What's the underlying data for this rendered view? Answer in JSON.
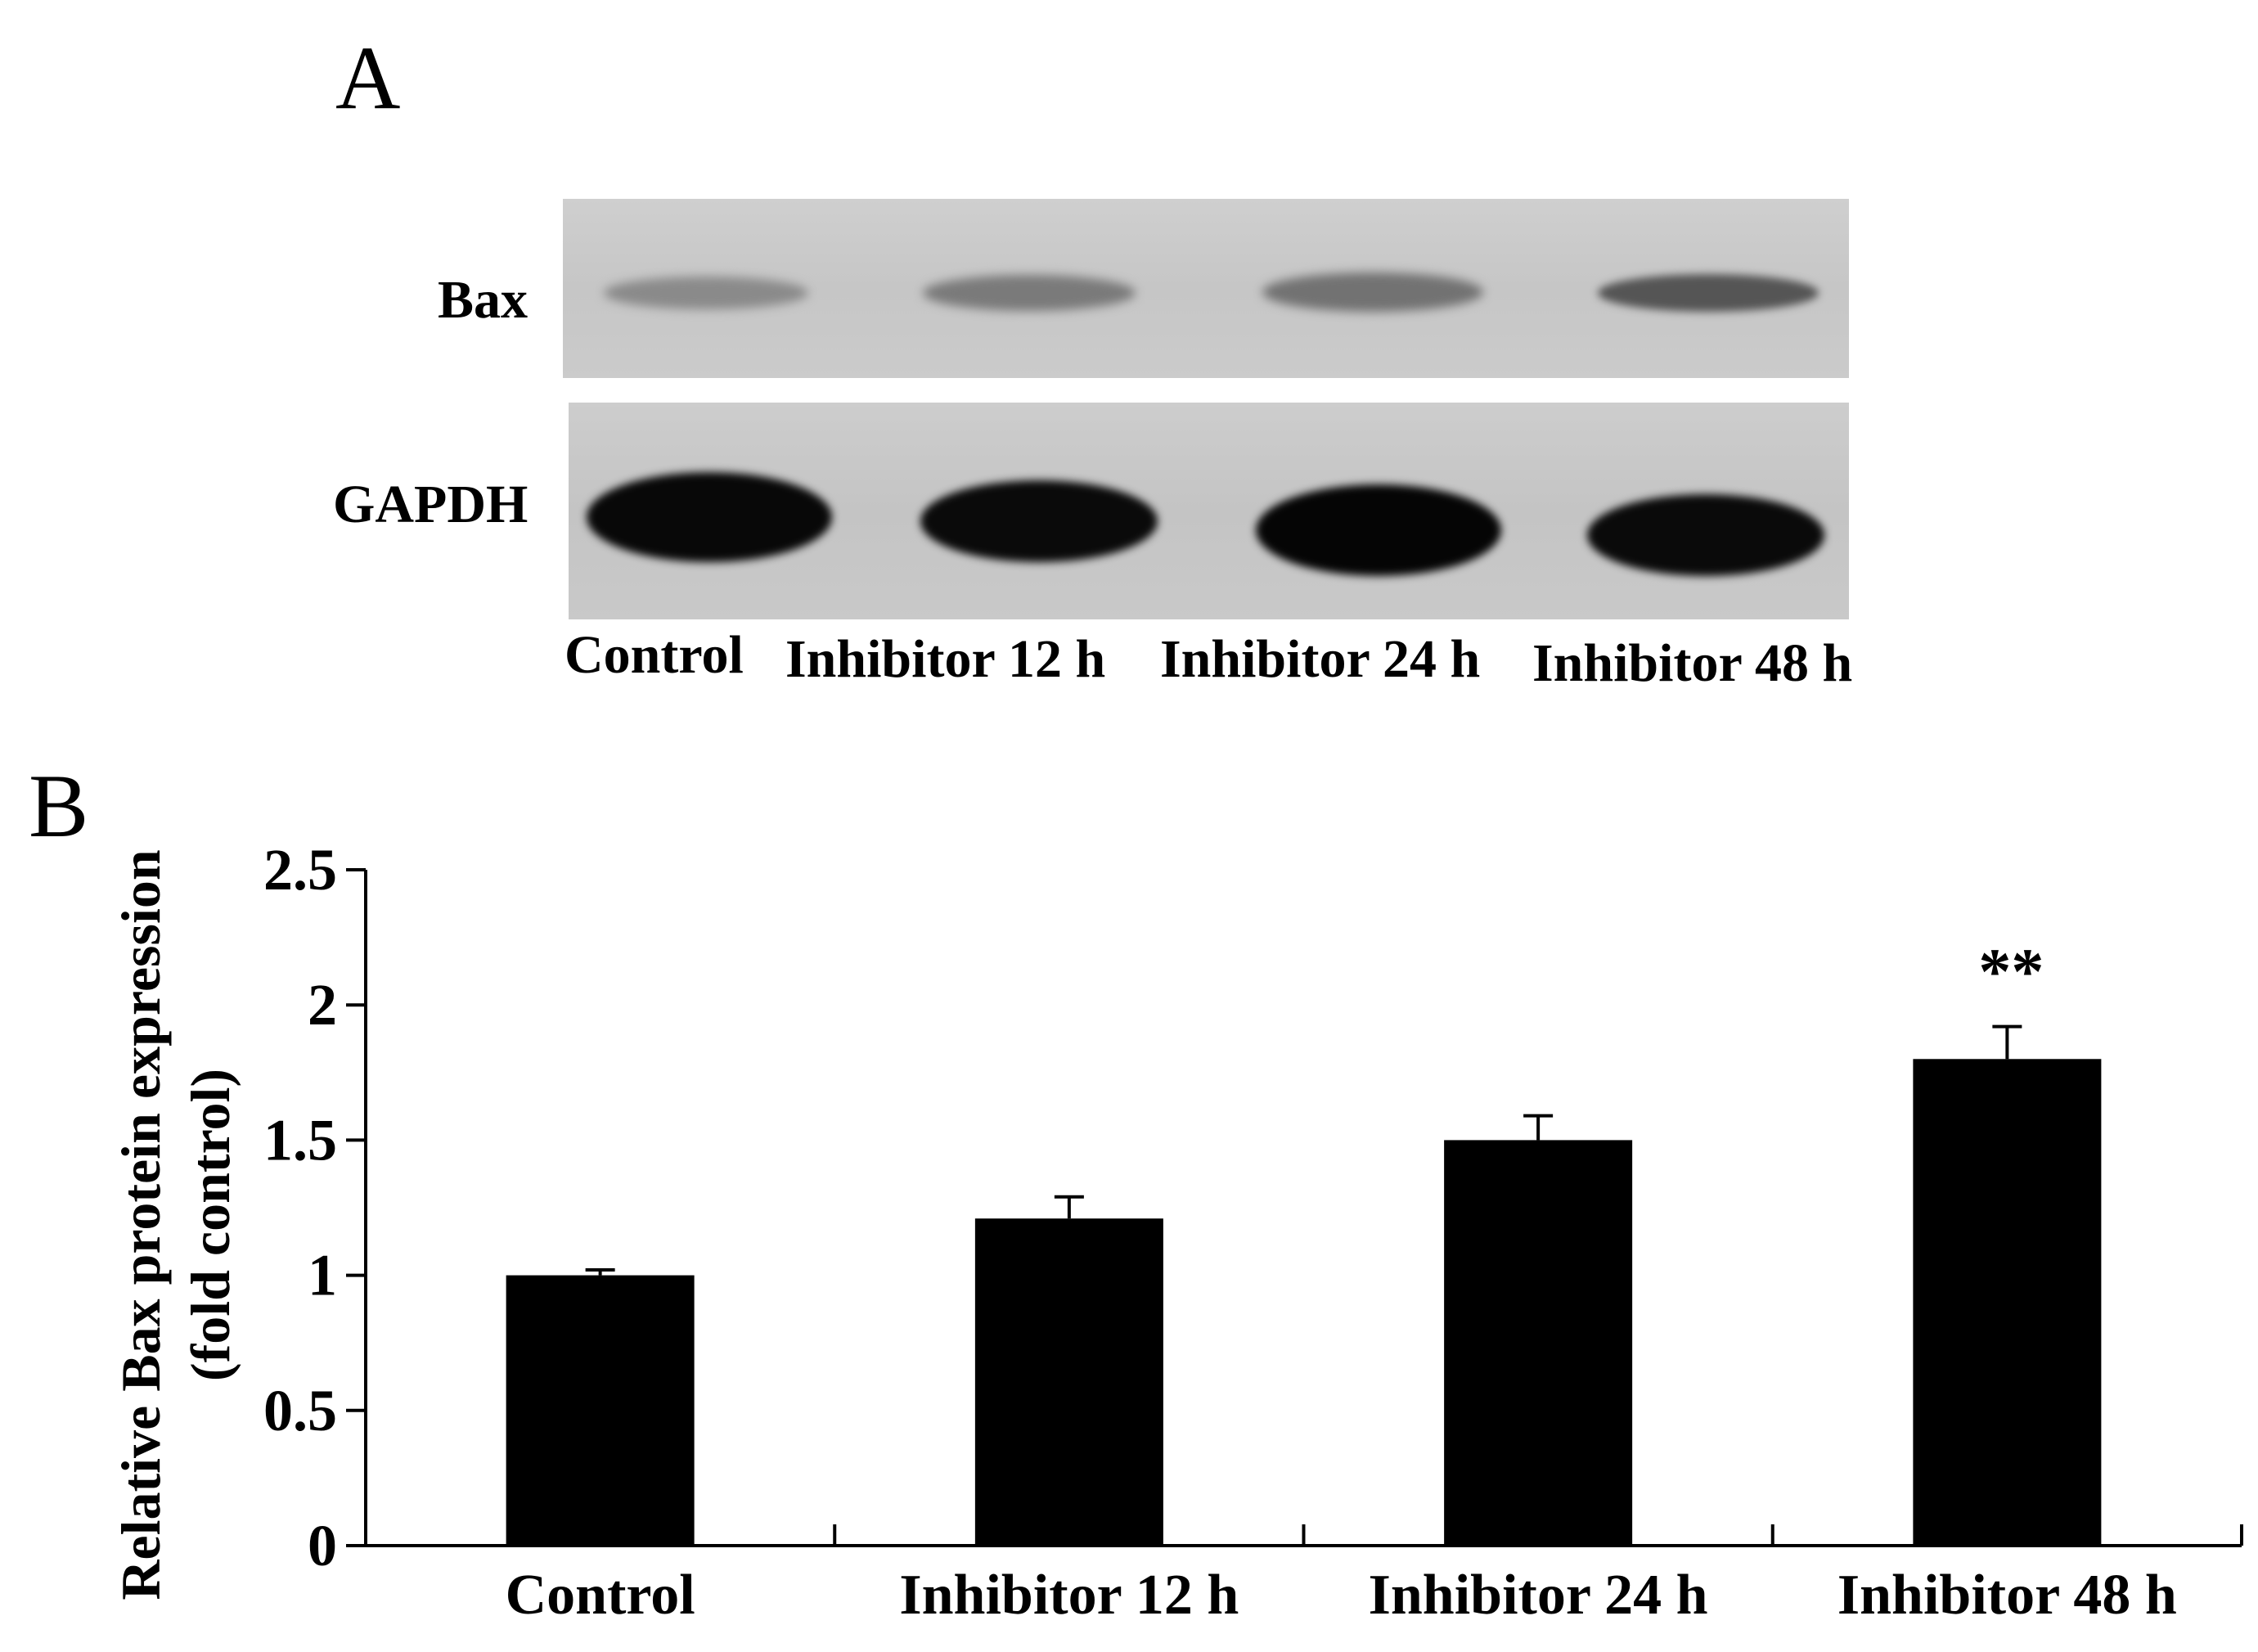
{
  "panel_a": {
    "letter": "A",
    "row_labels": [
      "Bax",
      "GAPDH"
    ],
    "lane_labels": [
      "Control",
      "Inhibitor 12 h",
      "Inhibitor 24 h",
      "Inhibitor 48 h"
    ]
  },
  "panel_b": {
    "letter": "B"
  },
  "chart_data": {
    "type": "bar",
    "categories": [
      "Control",
      "Inhibitor 12 h",
      "Inhibitor 24 h",
      "Inhibitor 48 h"
    ],
    "values": [
      1.0,
      1.21,
      1.5,
      1.8
    ],
    "error": [
      0.02,
      0.08,
      0.09,
      0.12
    ],
    "annotations": [
      "",
      "",
      "",
      "**"
    ],
    "ylabel_line1": "Relative Bax protein expression",
    "ylabel_line2": "(fold control)",
    "xlabel": "",
    "ylim": [
      0,
      2.5
    ],
    "yticks": [
      0,
      0.5,
      1,
      1.5,
      2,
      2.5
    ],
    "ytick_labels": [
      "0",
      "0.5",
      "1",
      "1.5",
      "2",
      "2.5"
    ],
    "bar_color": "#000000",
    "grid": false,
    "legend": "none"
  }
}
